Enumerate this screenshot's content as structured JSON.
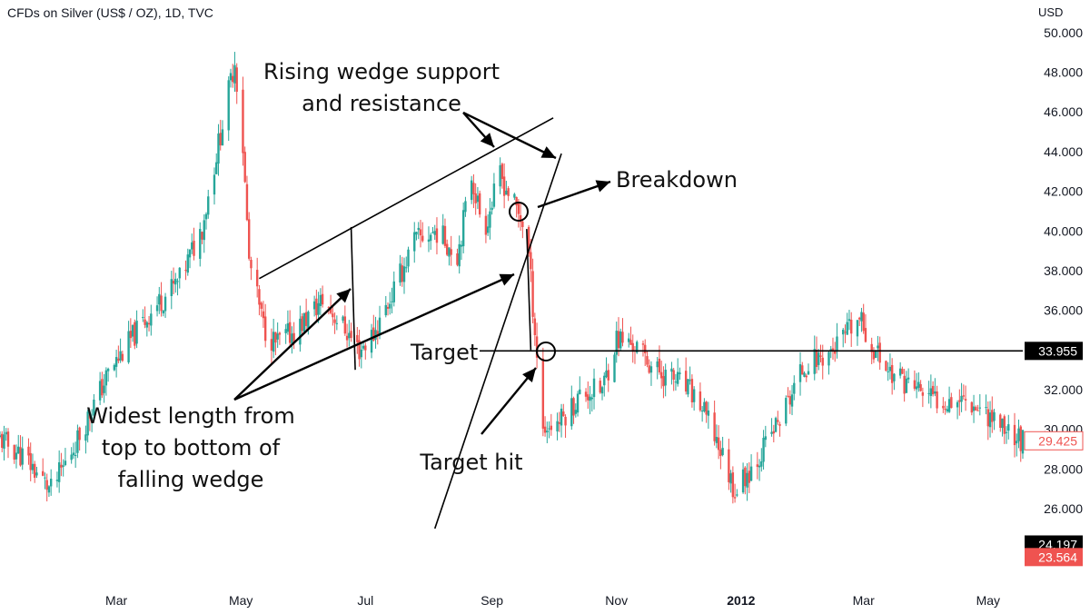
{
  "header": {
    "title": "CFDs on Silver (US$ / OZ), 1D, TVC",
    "currency": "USD"
  },
  "colors": {
    "up": "#26a69a",
    "down": "#ef5350",
    "text": "#131722",
    "line": "#000000"
  },
  "chart_data": {
    "type": "candlestick",
    "title": "CFDs on Silver (US$ / OZ), 1D, TVC",
    "ylabel": "USD",
    "ylim": [
      22.8,
      51.0
    ],
    "y_ticks": [
      "50.000",
      "48.000",
      "46.000",
      "44.000",
      "42.000",
      "40.000",
      "38.000",
      "36.000",
      "34.000",
      "32.000",
      "30.000",
      "28.000",
      "26.000"
    ],
    "x_ticks": [
      {
        "label": "Mar",
        "date": "2011-03-01",
        "bold": false
      },
      {
        "label": "May",
        "date": "2011-05-01",
        "bold": false
      },
      {
        "label": "Jul",
        "date": "2011-07-01",
        "bold": false
      },
      {
        "label": "Sep",
        "date": "2011-09-01",
        "bold": false
      },
      {
        "label": "Nov",
        "date": "2011-11-01",
        "bold": false
      },
      {
        "label": "2012",
        "date": "2012-01-01",
        "bold": true
      },
      {
        "label": "Mar",
        "date": "2012-03-01",
        "bold": false
      },
      {
        "label": "May",
        "date": "2012-05-01",
        "bold": false
      }
    ],
    "x_range": [
      "2011-01-03",
      "2012-05-18"
    ],
    "price_path": [
      [
        "2011-01-03",
        29.5
      ],
      [
        "2011-01-15",
        28.6
      ],
      [
        "2011-01-28",
        26.9
      ],
      [
        "2011-02-10",
        29.5
      ],
      [
        "2011-02-25",
        32.8
      ],
      [
        "2011-03-10",
        34.8
      ],
      [
        "2011-03-20",
        36.2
      ],
      [
        "2011-04-01",
        37.5
      ],
      [
        "2011-04-12",
        40.2
      ],
      [
        "2011-04-25",
        47.0
      ],
      [
        "2011-04-28",
        48.6
      ],
      [
        "2011-05-02",
        44.2
      ],
      [
        "2011-05-05",
        38.5
      ],
      [
        "2011-05-12",
        35.2
      ],
      [
        "2011-05-18",
        34.3
      ],
      [
        "2011-05-28",
        35.0
      ],
      [
        "2011-06-10",
        36.5
      ],
      [
        "2011-06-20",
        35.2
      ],
      [
        "2011-06-28",
        34.0
      ],
      [
        "2011-07-05",
        34.8
      ],
      [
        "2011-07-15",
        37.0
      ],
      [
        "2011-07-25",
        39.5
      ],
      [
        "2011-08-05",
        40.0
      ],
      [
        "2011-08-15",
        38.8
      ],
      [
        "2011-08-22",
        42.8
      ],
      [
        "2011-08-28",
        40.0
      ],
      [
        "2011-09-05",
        42.8
      ],
      [
        "2011-09-12",
        41.3
      ],
      [
        "2011-09-18",
        40.0
      ],
      [
        "2011-09-22",
        35.0
      ],
      [
        "2011-09-26",
        30.0
      ],
      [
        "2011-10-05",
        30.5
      ],
      [
        "2011-10-15",
        31.8
      ],
      [
        "2011-10-25",
        32.0
      ],
      [
        "2011-11-01",
        34.6
      ],
      [
        "2011-11-10",
        34.2
      ],
      [
        "2011-11-20",
        33.0
      ],
      [
        "2011-12-01",
        32.4
      ],
      [
        "2011-12-10",
        31.6
      ],
      [
        "2011-12-20",
        29.5
      ],
      [
        "2011-12-29",
        26.9
      ],
      [
        "2012-01-10",
        28.7
      ],
      [
        "2012-01-20",
        30.5
      ],
      [
        "2012-02-01",
        33.2
      ],
      [
        "2012-02-15",
        34.0
      ],
      [
        "2012-02-28",
        35.5
      ],
      [
        "2012-03-05",
        34.2
      ],
      [
        "2012-03-15",
        32.8
      ],
      [
        "2012-03-25",
        32.2
      ],
      [
        "2012-04-05",
        31.5
      ],
      [
        "2012-04-20",
        31.6
      ],
      [
        "2012-05-01",
        30.8
      ],
      [
        "2012-05-18",
        29.4
      ]
    ],
    "target_level": 33.955,
    "price_tags": [
      {
        "label": "33.955",
        "value": 33.955,
        "color": "#000000"
      },
      {
        "label": "29.425",
        "value": 29.425,
        "color": "outline-red"
      },
      {
        "label": "24.197",
        "value": 24.197,
        "color": "#000000"
      },
      {
        "label": "23.564",
        "value": 23.564,
        "color": "#ef5350"
      }
    ],
    "wedge_lines": {
      "upper": [
        [
          "2011-05-10",
          37.6
        ],
        [
          "2011-10-01",
          45.7
        ]
      ],
      "lower": [
        [
          "2011-08-04",
          25.0
        ],
        [
          "2011-10-05",
          43.9
        ]
      ],
      "height_bar_1": [
        [
          "2011-06-24",
          40.2
        ],
        [
          "2011-06-26",
          33.0
        ]
      ],
      "height_bar_2": [
        [
          "2011-09-18",
          40.1
        ],
        [
          "2011-09-20",
          34.0
        ]
      ]
    }
  },
  "annotations": {
    "wedge_label_line1": "Rising wedge support",
    "wedge_label_line2": "and resistance",
    "breakdown": "Breakdown",
    "target": "Target",
    "target_hit": "Target hit",
    "widest_line1": "Widest length from",
    "widest_line2": "top to bottom of",
    "widest_line3": "falling wedge"
  }
}
